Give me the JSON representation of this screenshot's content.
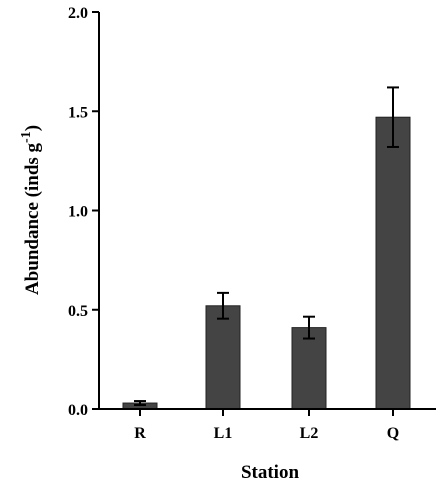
{
  "chart_data": {
    "type": "bar",
    "categories": [
      "R",
      "L1",
      "L2",
      "Q"
    ],
    "values": [
      0.03,
      0.52,
      0.41,
      1.47
    ],
    "errors": [
      0.01,
      0.065,
      0.055,
      0.15
    ],
    "xlabel": "Station",
    "ylabel": "Abundance (inds g",
    "ylabel_sup": "-1",
    "ylabel_suffix": ")",
    "ylim": [
      0.0,
      2.0
    ],
    "yticks": [
      "0.0",
      "0.5",
      "1.0",
      "1.5",
      "2.0"
    ],
    "grid": false,
    "bar_color": "#444444"
  }
}
